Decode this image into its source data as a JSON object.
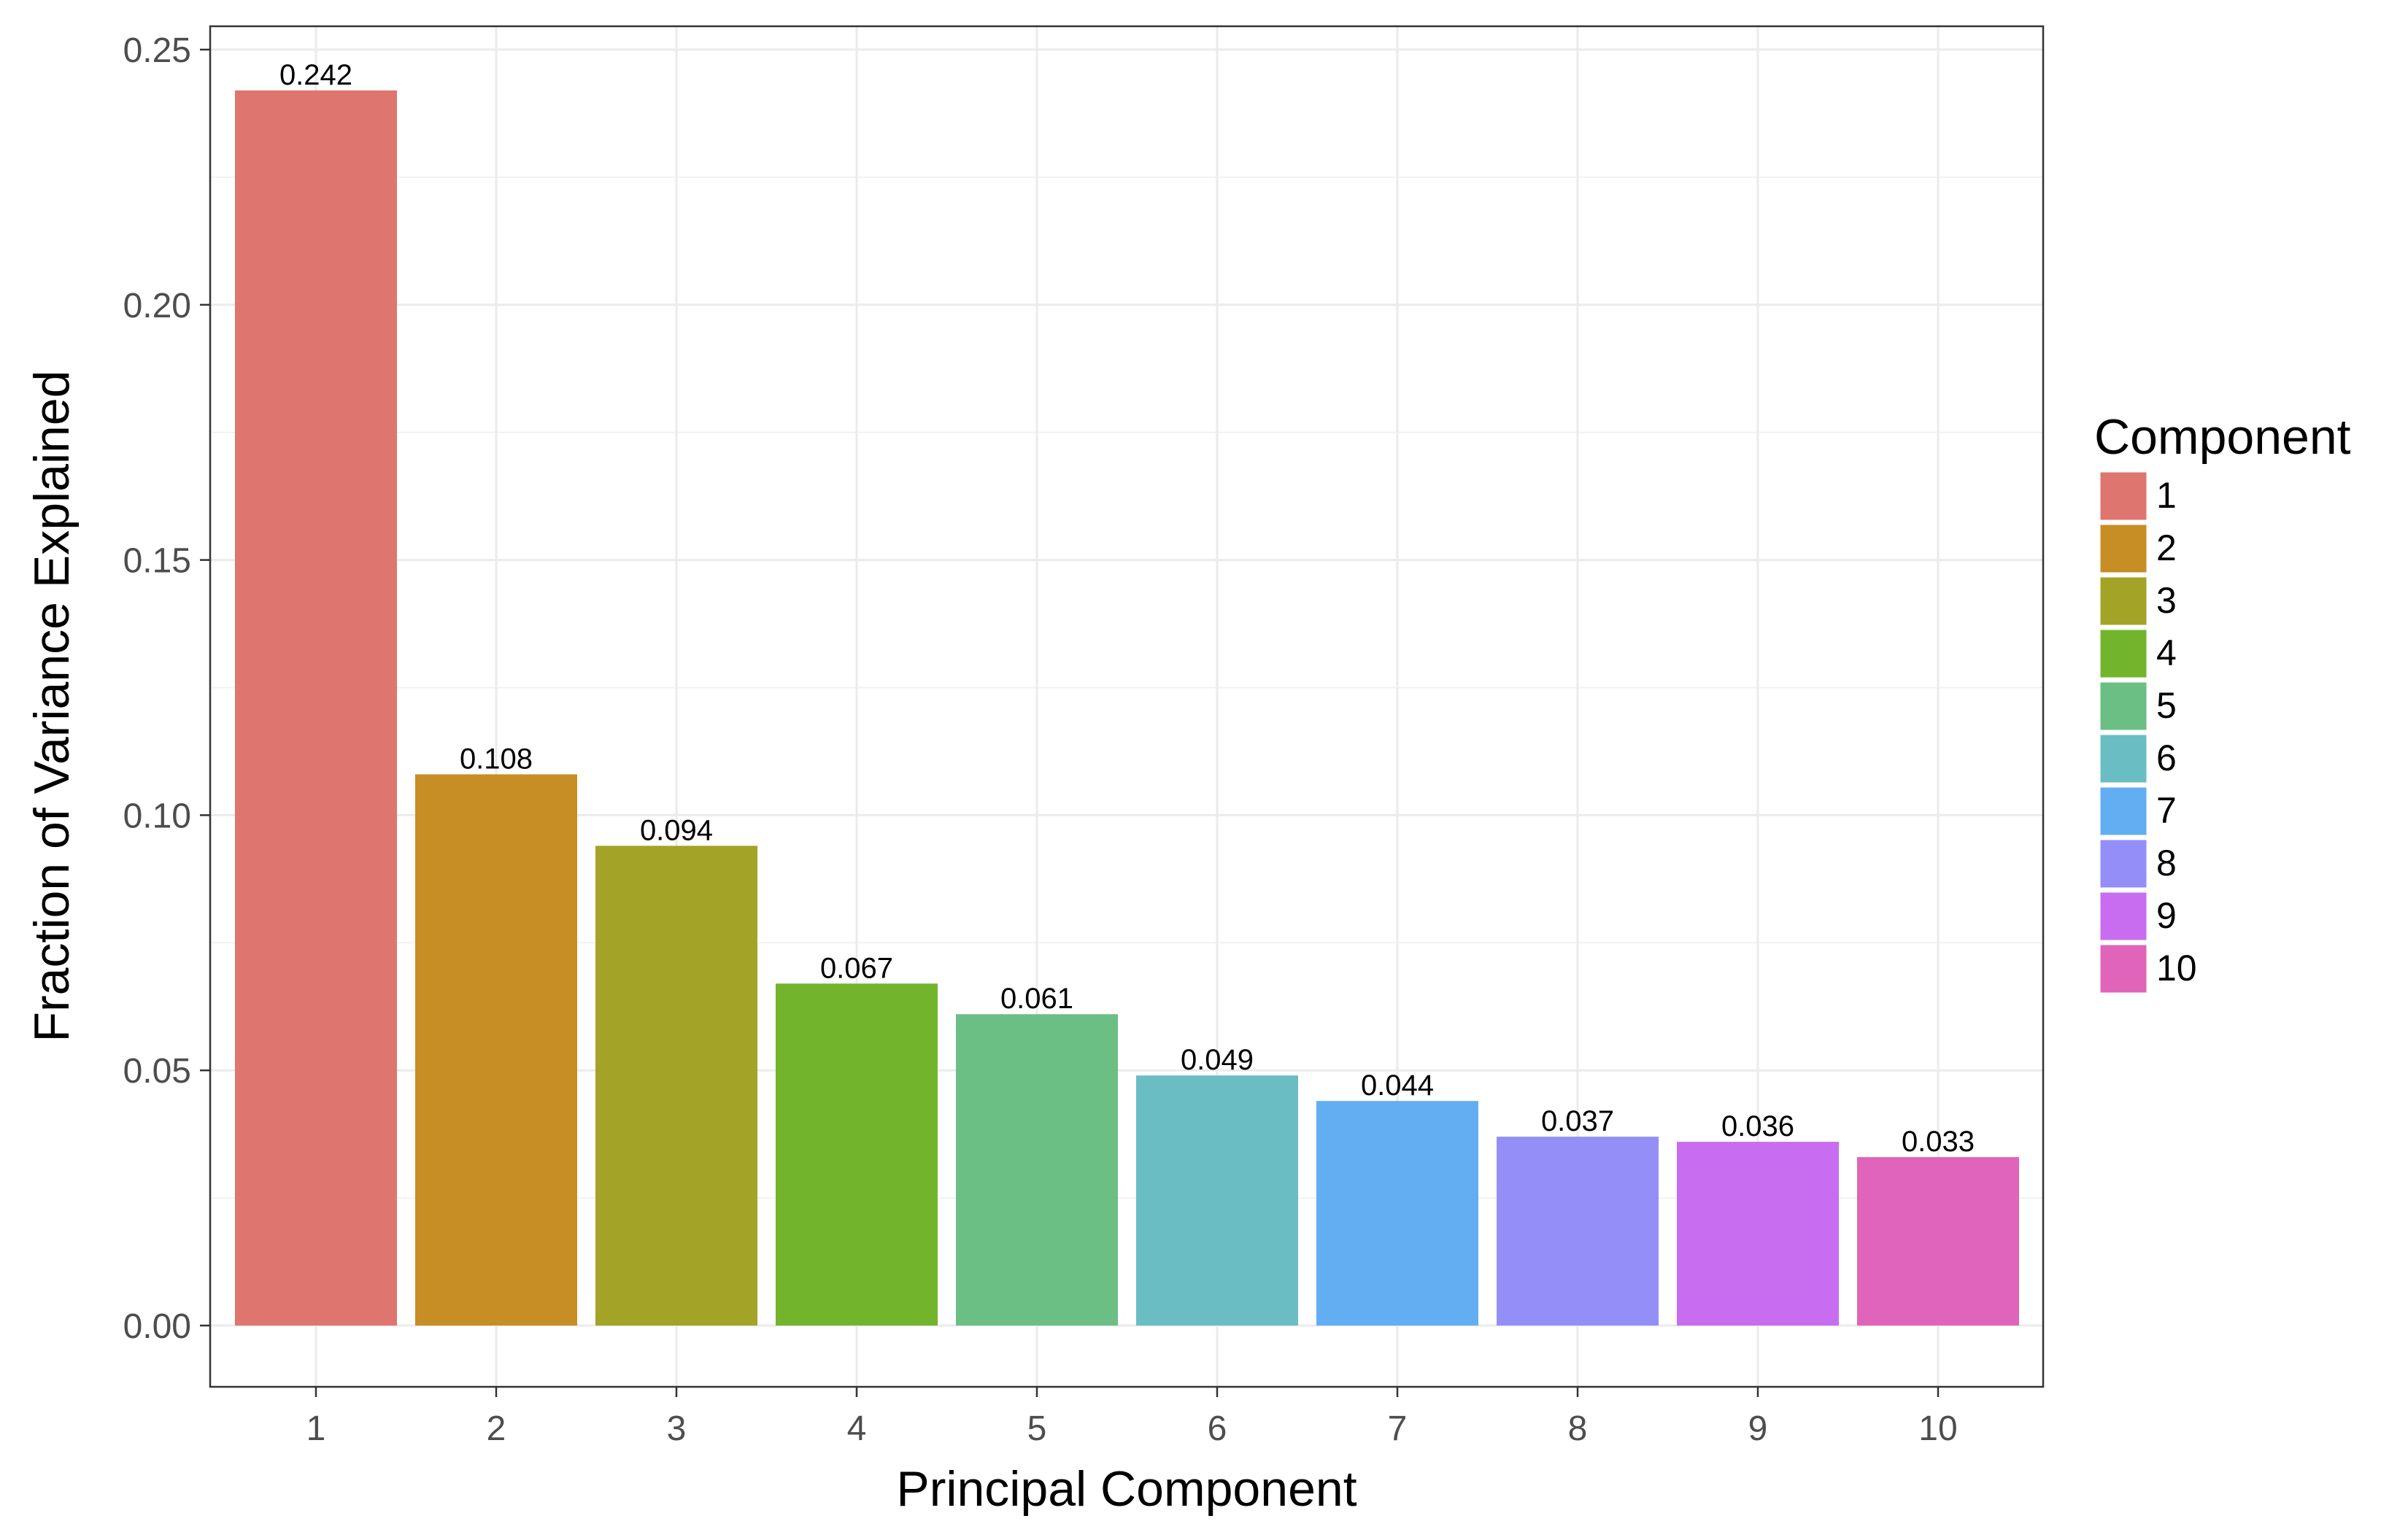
{
  "chart_data": {
    "type": "bar",
    "title": "",
    "xlabel": "Principal Component",
    "ylabel": "Fraction of Variance Explained",
    "categories": [
      "1",
      "2",
      "3",
      "4",
      "5",
      "6",
      "7",
      "8",
      "9",
      "10"
    ],
    "values": [
      0.242,
      0.108,
      0.094,
      0.067,
      0.061,
      0.049,
      0.044,
      0.037,
      0.036,
      0.033
    ],
    "value_labels": [
      "0.242",
      "0.108",
      "0.094",
      "0.067",
      "0.061",
      "0.049",
      "0.044",
      "0.037",
      "0.036",
      "0.033"
    ],
    "ylim": [
      0,
      0.25
    ],
    "yticks": [
      0,
      0.05,
      0.1,
      0.15,
      0.2,
      0.25
    ],
    "ytick_labels": [
      "0.00",
      "0.05",
      "0.10",
      "0.15",
      "0.20",
      "0.25"
    ],
    "grid": true,
    "legend": {
      "title": "Component",
      "position": "right",
      "entries": [
        "1",
        "2",
        "3",
        "4",
        "5",
        "6",
        "7",
        "8",
        "9",
        "10"
      ]
    },
    "colors": [
      "#DE756E",
      "#C68E24",
      "#A3A328",
      "#72B52C",
      "#6BBE84",
      "#6ABDC3",
      "#63AEF2",
      "#948FF8",
      "#C86DEF",
      "#E064B9"
    ]
  }
}
